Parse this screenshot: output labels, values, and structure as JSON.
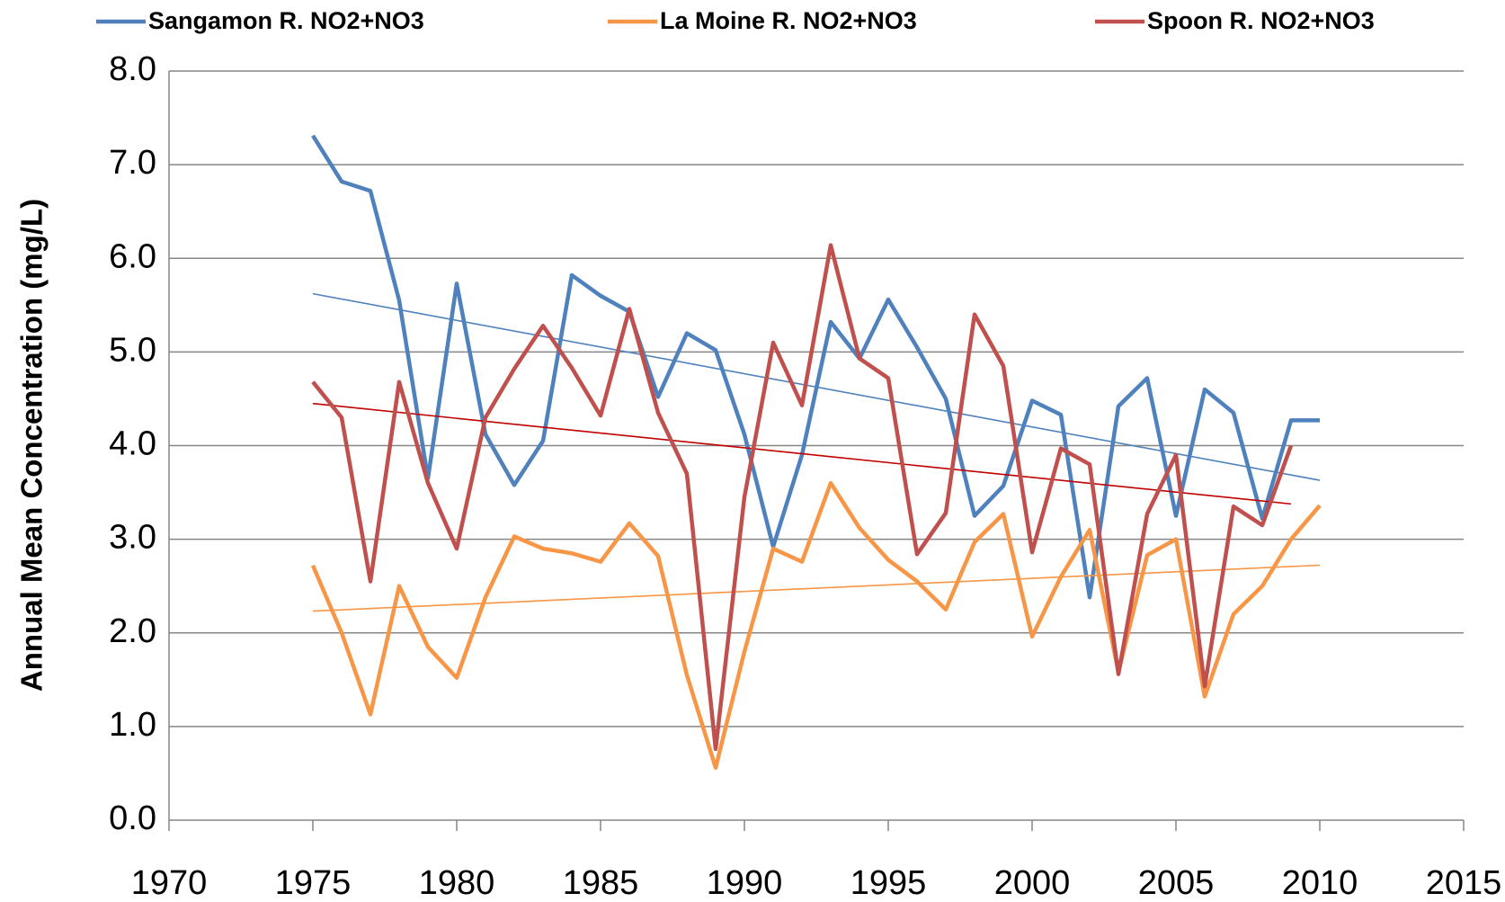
{
  "chart_data": {
    "type": "line",
    "y_label": "Annual Mean Concentration (mg/L)",
    "xlim": [
      1970,
      2015
    ],
    "xticks": [
      1970,
      1975,
      1980,
      1985,
      1990,
      1995,
      2000,
      2005,
      2010,
      2015
    ],
    "ylim": [
      0,
      8
    ],
    "yticks": [
      {
        "value": 0,
        "label": "0.0"
      },
      {
        "value": 1,
        "label": "1.0"
      },
      {
        "value": 2,
        "label": "2.0"
      },
      {
        "value": 3,
        "label": "3.0"
      },
      {
        "value": 4,
        "label": "4.0"
      },
      {
        "value": 5,
        "label": "5.0"
      },
      {
        "value": 6,
        "label": "6.0"
      },
      {
        "value": 7,
        "label": "7.0"
      },
      {
        "value": 8,
        "label": "8.0"
      }
    ],
    "grid": true,
    "legend": "top",
    "x": [
      1975,
      1976,
      1977,
      1978,
      1979,
      1980,
      1981,
      1982,
      1983,
      1984,
      1985,
      1986,
      1987,
      1988,
      1989,
      1990,
      1991,
      1992,
      1993,
      1994,
      1995,
      1996,
      1997,
      1998,
      1999,
      2000,
      2001,
      2002,
      2003,
      2004,
      2005,
      2006,
      2007,
      2008,
      2009,
      2010
    ],
    "series": [
      {
        "name": "Sangamon R. NO2+NO3",
        "color": "#4f81bd",
        "trendline": true,
        "trendline_color": "#4f81bd",
        "values": [
          7.31,
          6.82,
          6.72,
          5.55,
          3.65,
          5.73,
          4.12,
          3.58,
          4.05,
          5.82,
          5.6,
          5.43,
          4.52,
          5.2,
          5.02,
          4.12,
          2.92,
          3.9,
          5.32,
          4.93,
          5.56,
          5.05,
          4.5,
          3.25,
          3.57,
          4.48,
          4.33,
          2.38,
          4.42,
          4.72,
          3.25,
          4.6,
          4.35,
          3.22,
          4.27,
          4.27
        ]
      },
      {
        "name": "La Moine R. NO2+NO3",
        "color": "#f79646",
        "trendline": true,
        "trendline_color": "#f79646",
        "values": [
          2.72,
          2.0,
          1.13,
          2.5,
          1.85,
          1.52,
          2.38,
          3.03,
          2.9,
          2.85,
          2.76,
          3.17,
          2.82,
          1.55,
          0.56,
          1.8,
          2.9,
          2.76,
          3.6,
          3.12,
          2.78,
          2.55,
          2.25,
          2.97,
          3.27,
          1.96,
          2.6,
          3.1,
          1.58,
          2.83,
          3.0,
          1.32,
          2.2,
          2.5,
          3.0,
          3.36
        ]
      },
      {
        "name": "Spoon R. NO2+NO3",
        "color": "#c0504d",
        "trendline": true,
        "trendline_color": "#c00000",
        "values": [
          4.68,
          4.3,
          2.55,
          4.68,
          3.6,
          2.9,
          4.3,
          4.82,
          5.28,
          4.83,
          4.32,
          5.46,
          4.35,
          3.7,
          0.76,
          3.45,
          5.1,
          4.43,
          6.14,
          4.93,
          4.72,
          2.84,
          3.28,
          5.4,
          4.85,
          2.86,
          3.97,
          3.8,
          1.56,
          3.27,
          3.9,
          1.43,
          3.35,
          3.15,
          4.0,
          null
        ]
      }
    ]
  }
}
